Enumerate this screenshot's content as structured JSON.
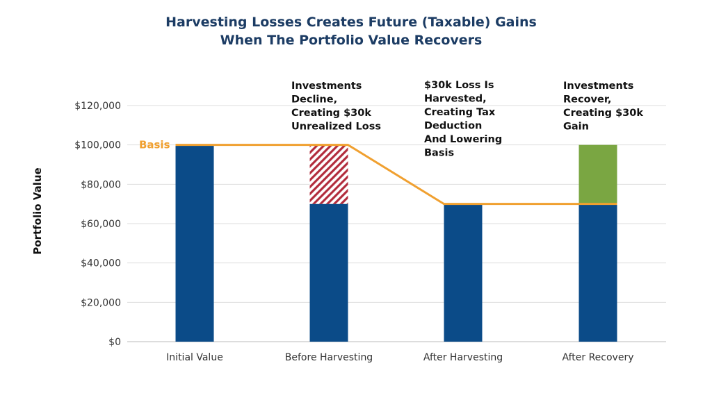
{
  "colors": {
    "title": "#1c3c64",
    "bar_base": "#0b4b88",
    "loss_hatch": "#b22c3c",
    "gain": "#7aa642",
    "basis": "#f0a030",
    "grid": "#dddddd",
    "axis": "#bbbbbb"
  },
  "chart_data": {
    "type": "bar",
    "stacked": true,
    "title_lines": [
      "Harvesting Losses Creates Future (Taxable) Gains",
      "When The Portfolio Value Recovers"
    ],
    "ylabel": "Portfolio Value",
    "xlabel": "",
    "ylim": [
      0,
      120000
    ],
    "y_ticks": [
      0,
      20000,
      40000,
      60000,
      80000,
      100000,
      120000
    ],
    "y_tick_labels": [
      "$0",
      "$20,000",
      "$40,000",
      "$60,000",
      "$80,000",
      "$100,000",
      "$120,000"
    ],
    "grid": true,
    "categories": [
      "Initial Value",
      "Before Harvesting",
      "After Harvesting",
      "After Recovery"
    ],
    "series": [
      {
        "key": "base",
        "values": [
          100000,
          70000,
          70000,
          70000
        ],
        "style": "solid",
        "color": "#0b4b88"
      },
      {
        "key": "unrealized_loss",
        "values": [
          0,
          30000,
          0,
          0
        ],
        "style": "hatched",
        "color": "#b22c3c"
      },
      {
        "key": "gain",
        "values": [
          0,
          0,
          0,
          30000
        ],
        "style": "solid",
        "color": "#7aa642"
      }
    ],
    "basis_line": {
      "label": "Basis",
      "points": [
        {
          "category_index": 0,
          "edge": "left",
          "value": 100000
        },
        {
          "category_index": 1,
          "edge": "right",
          "value": 100000
        },
        {
          "category_index": 2,
          "edge": "left",
          "value": 70000
        },
        {
          "category_index": 3,
          "edge": "right",
          "value": 70000
        }
      ]
    },
    "annotations": [
      {
        "category_index": 1,
        "lines": [
          "Investments",
          "Decline,",
          "Creating $30k",
          "Unrealized Loss"
        ]
      },
      {
        "category_index": 2,
        "lines": [
          "$30k Loss Is",
          "Harvested,",
          "Creating Tax",
          "Deduction",
          "And Lowering",
          "Basis"
        ]
      },
      {
        "category_index": 3,
        "lines": [
          "Investments",
          "Recover,",
          "Creating $30k",
          "Gain"
        ]
      }
    ]
  }
}
